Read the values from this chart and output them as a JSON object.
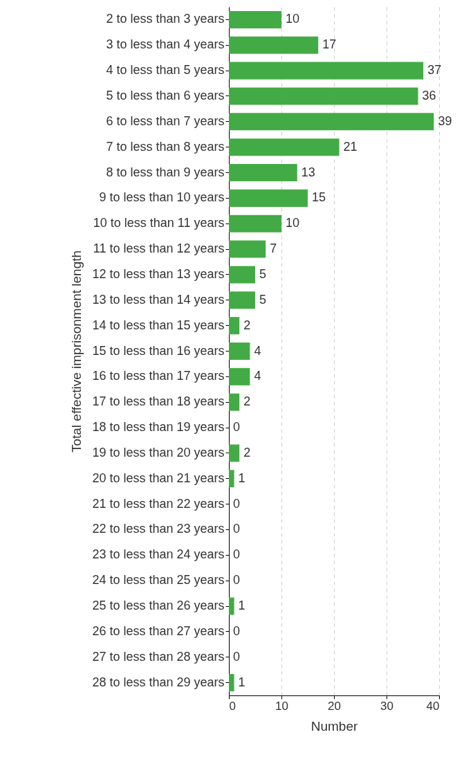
{
  "chart_data": {
    "type": "bar",
    "orientation": "horizontal",
    "xlabel": "Number",
    "ylabel": "Total effective imprisonment length",
    "categories": [
      "2 to less than 3 years",
      "3 to less than 4 years",
      "4 to less than 5 years",
      "5 to less than 6 years",
      "6 to less than 7 years",
      "7 to less than 8 years",
      "8 to less than 9 years",
      "9 to less than 10 years",
      "10 to less than 11 years",
      "11 to less than 12 years",
      "12 to less than 13 years",
      "13 to less than 14 years",
      "14 to less than 15 years",
      "15 to less than 16 years",
      "16 to less than 17 years",
      "17 to less than 18 years",
      "18 to less than 19 years",
      "19 to less than 20 years",
      "20 to less than 21 years",
      "21 to less than 22 years",
      "22 to less than 23 years",
      "23 to less than 24 years",
      "24 to less than 25 years",
      "25 to less than 26 years",
      "26 to less than 27 years",
      "27 to less than 28 years",
      "28 to less than 29 years"
    ],
    "values": [
      10,
      17,
      37,
      36,
      39,
      21,
      13,
      15,
      10,
      7,
      5,
      5,
      2,
      4,
      4,
      2,
      0,
      2,
      1,
      0,
      0,
      0,
      0,
      1,
      0,
      0,
      1
    ],
    "color": "#43ab45",
    "xlim": [
      0,
      40
    ],
    "xticks": [
      0,
      10,
      20,
      30,
      40
    ],
    "grid": "x",
    "data_labels": true
  }
}
